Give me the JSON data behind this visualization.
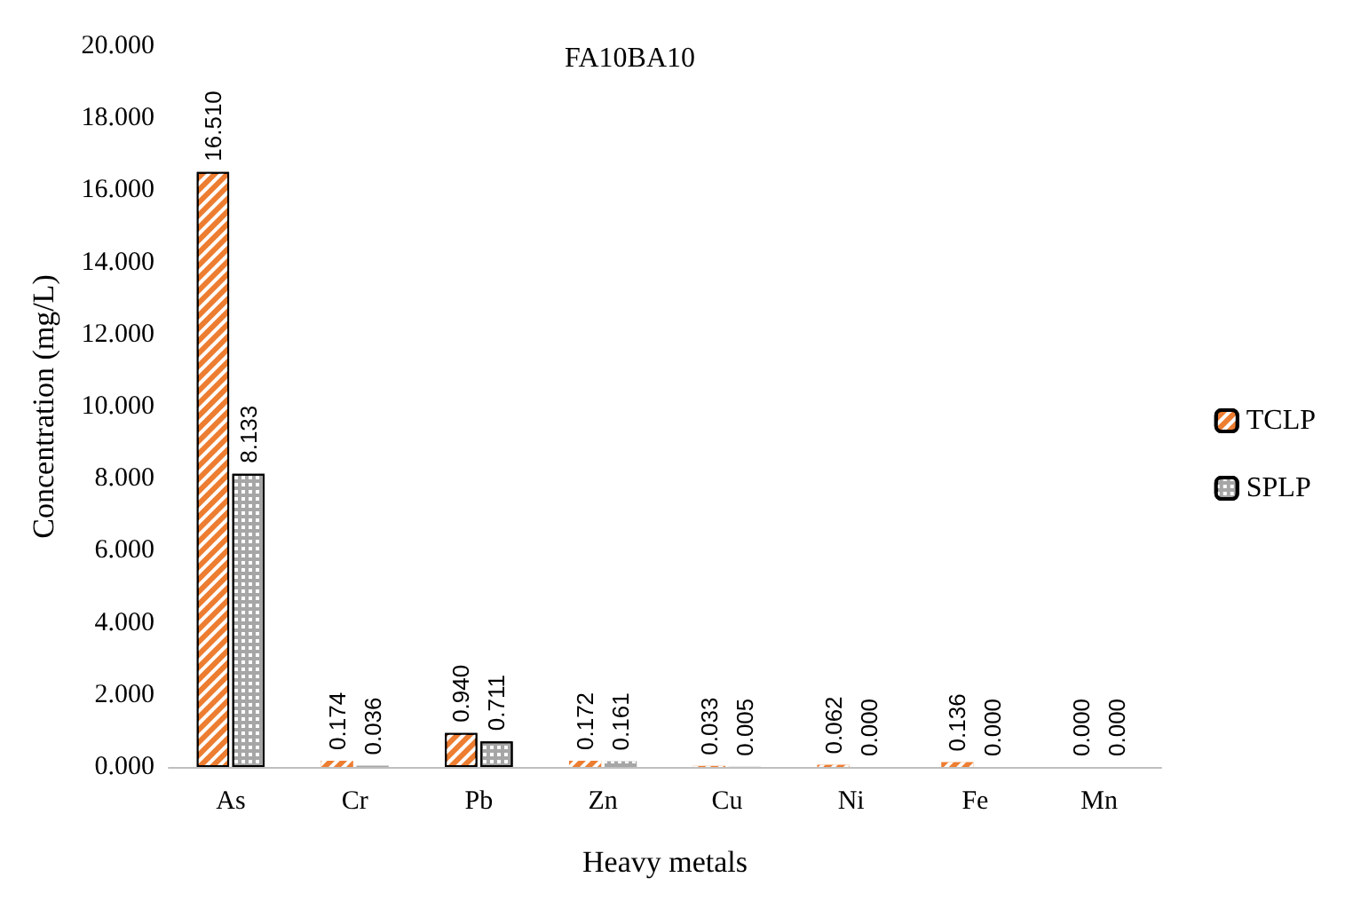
{
  "chart_data": {
    "type": "bar",
    "title": "FA10BA10",
    "xlabel": "Heavy metals",
    "ylabel": "Concentration (mg/L)",
    "categories": [
      "As",
      "Cr",
      "Pb",
      "Zn",
      "Cu",
      "Ni",
      "Fe",
      "Mn"
    ],
    "series": [
      {
        "name": "TCLP",
        "color": "#ed7d31",
        "values": [
          16.51,
          0.174,
          0.94,
          0.172,
          0.033,
          0.062,
          0.136,
          0
        ],
        "value_labels": [
          "16.510",
          "0.174",
          "0.940",
          "0.172",
          "0.033",
          "0.062",
          "0.136",
          "0.000"
        ]
      },
      {
        "name": "SPLP",
        "color": "#a6a6a6",
        "values": [
          8.133,
          0.036,
          0.711,
          0.161,
          0.005,
          0,
          0,
          0
        ],
        "value_labels": [
          "8.133",
          "0.036",
          "0.711",
          "0.161",
          "0.005",
          "0.000",
          "0.000",
          "0.000"
        ]
      }
    ],
    "ylim": [
      0,
      20
    ],
    "yticks": [
      {
        "value": 0,
        "label": "0.000"
      },
      {
        "value": 2,
        "label": "2.000"
      },
      {
        "value": 4,
        "label": "4.000"
      },
      {
        "value": 6,
        "label": "6.000"
      },
      {
        "value": 8,
        "label": "8.000"
      },
      {
        "value": 10,
        "label": "10.000"
      },
      {
        "value": 12,
        "label": "12.000"
      },
      {
        "value": 14,
        "label": "14.000"
      },
      {
        "value": 16,
        "label": "16.000"
      },
      {
        "value": 18,
        "label": "18.000"
      },
      {
        "value": 20,
        "label": "20.000"
      }
    ],
    "grid": false,
    "legend": "right"
  }
}
